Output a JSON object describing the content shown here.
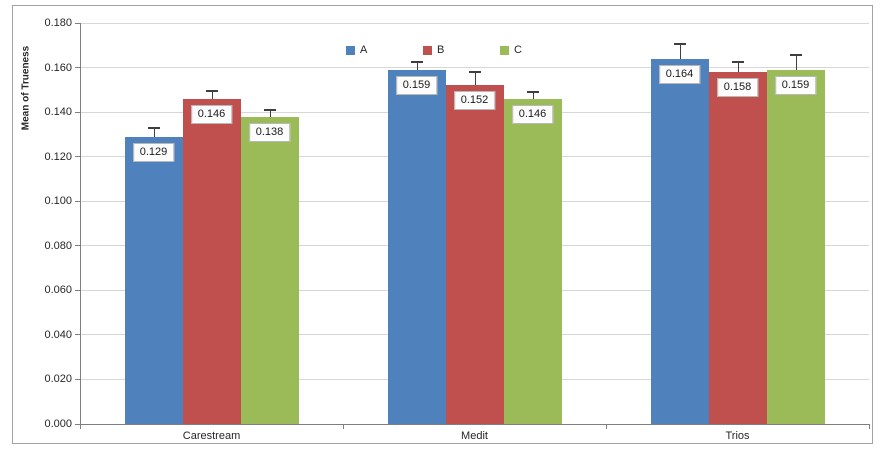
{
  "chart_data": {
    "type": "bar",
    "title": "",
    "xlabel": "",
    "ylabel": "Mean of Trueness",
    "categories": [
      "Carestream",
      "Medit",
      "Trios"
    ],
    "series": [
      {
        "name": "A",
        "color": "#4F81BD",
        "values": [
          0.129,
          0.159,
          0.164
        ],
        "labels": [
          "0.129",
          "0.159",
          "0.164"
        ],
        "errors": [
          0.004,
          0.0035,
          0.0065
        ]
      },
      {
        "name": "B",
        "color": "#C0504D",
        "values": [
          0.146,
          0.152,
          0.158
        ],
        "labels": [
          "0.146",
          "0.152",
          "0.158"
        ],
        "errors": [
          0.0035,
          0.006,
          0.0045
        ]
      },
      {
        "name": "C",
        "color": "#9BBB59",
        "values": [
          0.138,
          0.146,
          0.159
        ],
        "labels": [
          "0.138",
          "0.146",
          "0.159"
        ],
        "errors": [
          0.003,
          0.003,
          0.0065
        ]
      }
    ],
    "ylim": [
      0,
      0.18
    ],
    "yticks": [
      "0.000",
      "0.020",
      "0.040",
      "0.060",
      "0.080",
      "0.100",
      "0.120",
      "0.140",
      "0.160",
      "0.180"
    ],
    "grid": true,
    "legend_position": "top-center",
    "error_bars": "plus-direction, capped",
    "data_label_style": "boxed, inside top of bar"
  },
  "colors": {
    "series_a": "#4F81BD",
    "series_b": "#C0504D",
    "series_c": "#9BBB59",
    "gridline": "#D7D7D7",
    "axis": "#7F7F7F",
    "chart_border": "#A3A3A3",
    "error_bar": "#3F3F3F",
    "label_box_bg": "#FCFCFC",
    "label_box_border": "#B8B8B8",
    "text": "#262626"
  }
}
